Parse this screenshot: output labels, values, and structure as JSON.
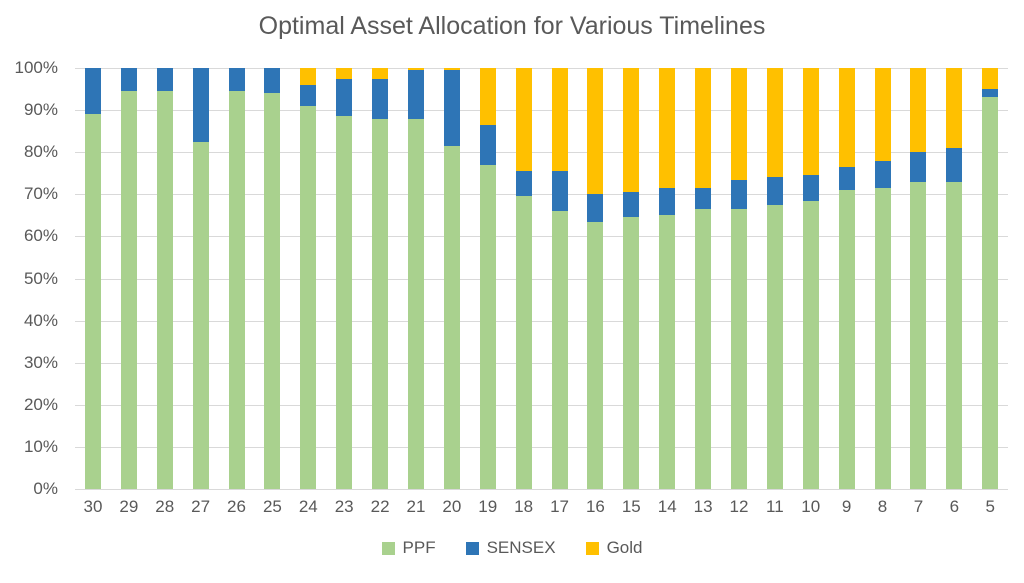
{
  "title": "Optimal Asset Allocation for Various Timelines",
  "colors": {
    "ppf_green": "#A9D18E",
    "sensex_blue": "#2E75B6",
    "gold_yellow": "#FFC000",
    "text_gray": "#595959",
    "gridline_gray": "#D9D9D9",
    "background": "#FFFFFF"
  },
  "chart_data": {
    "type": "bar",
    "stacked": true,
    "stacked_mode": "percent",
    "title": "Optimal Asset Allocation for Various Timelines",
    "xlabel": "",
    "ylabel": "",
    "ylim": [
      0,
      100
    ],
    "grid": true,
    "legend_position": "bottom",
    "y_ticks": [
      "100%",
      "90%",
      "80%",
      "70%",
      "60%",
      "50%",
      "40%",
      "30%",
      "20%",
      "10%",
      "0%"
    ],
    "categories": [
      "30",
      "29",
      "28",
      "27",
      "26",
      "25",
      "24",
      "23",
      "22",
      "21",
      "20",
      "19",
      "18",
      "17",
      "16",
      "15",
      "14",
      "13",
      "12",
      "11",
      "10",
      "9",
      "8",
      "7",
      "6",
      "5"
    ],
    "series": [
      {
        "name": "PPF",
        "color": "#A9D18E",
        "values": [
          89,
          94.5,
          94.5,
          82.5,
          94.5,
          94,
          91,
          88.5,
          88,
          88,
          81.5,
          77,
          69.5,
          66,
          63.5,
          64.5,
          65,
          66.5,
          66.5,
          67.5,
          68.5,
          71,
          71.5,
          73,
          73,
          93
        ]
      },
      {
        "name": "SENSEX",
        "color": "#2E75B6",
        "values": [
          11,
          5.5,
          5.5,
          17.5,
          5.5,
          6,
          5,
          9,
          9.5,
          11.5,
          18,
          9.5,
          6,
          9.5,
          6.5,
          6,
          6.5,
          5,
          7,
          6.5,
          6,
          5.5,
          6.5,
          7,
          8,
          2
        ]
      },
      {
        "name": "Gold",
        "color": "#FFC000",
        "values": [
          0,
          0,
          0,
          0,
          0,
          0,
          4,
          2.5,
          2.5,
          0.5,
          0.5,
          13.5,
          24.5,
          24.5,
          30,
          29.5,
          28.5,
          28.5,
          26.5,
          26,
          25.5,
          23.5,
          22,
          20,
          19,
          5
        ]
      }
    ]
  },
  "legend": {
    "items": [
      {
        "label": "PPF",
        "color": "#A9D18E"
      },
      {
        "label": "SENSEX",
        "color": "#2E75B6"
      },
      {
        "label": "Gold",
        "color": "#FFC000"
      }
    ]
  }
}
